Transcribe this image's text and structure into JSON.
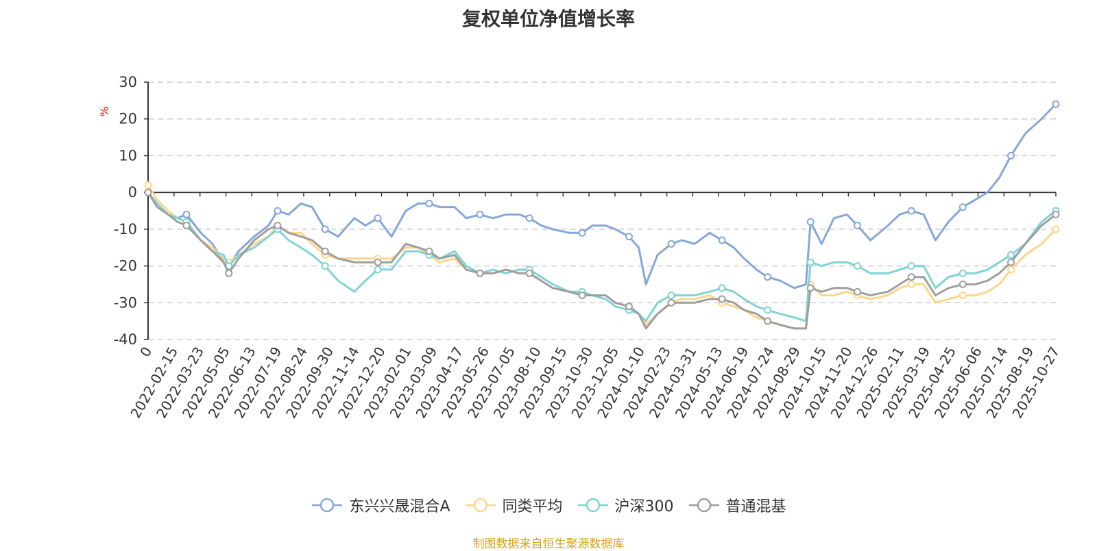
{
  "title": "复权单位净值增长率",
  "source": "制图数据来自恒生聚源数据库",
  "chart_data": {
    "type": "line",
    "title": "复权单位净值增长率",
    "ylabel": "%",
    "ylim": [
      -40,
      30
    ],
    "yticks": [
      30,
      20,
      10,
      0,
      -10,
      -20,
      -30,
      -40
    ],
    "grid": true,
    "legend_position": "bottom",
    "x_tick_labels": [
      "0",
      "2022-02-15",
      "2022-03-23",
      "2022-05-05",
      "2022-06-13",
      "2022-07-19",
      "2022-08-24",
      "2022-09-30",
      "2022-11-14",
      "2022-12-20",
      "2023-02-01",
      "2023-03-09",
      "2023-04-17",
      "2023-05-26",
      "2023-07-05",
      "2023-08-10",
      "2023-09-15",
      "2023-10-30",
      "2023-12-05",
      "2024-01-10",
      "2024-02-23",
      "2024-03-31",
      "2024-05-13",
      "2024-06-19",
      "2024-07-24",
      "2024-08-29",
      "2024-10-15",
      "2024-11-20",
      "2024-12-26",
      "2025-02-11",
      "2025-03-19",
      "2025-04-25",
      "2025-06-06",
      "2025-07-14",
      "2025-08-19",
      "2025-10-27"
    ],
    "x": [
      "2022-01-01",
      "2022-01-15",
      "2022-02-01",
      "2022-02-15",
      "2022-03-01",
      "2022-03-23",
      "2022-04-10",
      "2022-04-27",
      "2022-05-05",
      "2022-05-20",
      "2022-06-13",
      "2022-07-05",
      "2022-07-19",
      "2022-08-05",
      "2022-08-24",
      "2022-09-10",
      "2022-09-30",
      "2022-10-20",
      "2022-11-14",
      "2022-12-01",
      "2022-12-20",
      "2023-01-10",
      "2023-02-01",
      "2023-02-20",
      "2023-03-09",
      "2023-03-25",
      "2023-04-17",
      "2023-05-05",
      "2023-05-26",
      "2023-06-15",
      "2023-07-05",
      "2023-07-25",
      "2023-08-10",
      "2023-08-28",
      "2023-09-15",
      "2023-10-10",
      "2023-10-30",
      "2023-11-15",
      "2023-12-05",
      "2023-12-20",
      "2024-01-10",
      "2024-01-25",
      "2024-02-05",
      "2024-02-23",
      "2024-03-15",
      "2024-03-31",
      "2024-04-20",
      "2024-05-13",
      "2024-06-01",
      "2024-06-19",
      "2024-07-05",
      "2024-07-24",
      "2024-08-10",
      "2024-08-29",
      "2024-09-20",
      "2024-10-08",
      "2024-10-15",
      "2024-11-01",
      "2024-11-20",
      "2024-12-10",
      "2024-12-26",
      "2025-01-15",
      "2025-02-11",
      "2025-03-01",
      "2025-03-19",
      "2025-04-07",
      "2025-04-25",
      "2025-05-15",
      "2025-06-06",
      "2025-06-25",
      "2025-07-14",
      "2025-08-01",
      "2025-08-19",
      "2025-09-10",
      "2025-10-05",
      "2025-10-27"
    ],
    "series": [
      {
        "name": "东兴兴晟混合A",
        "color": "#86a6d9",
        "values": [
          0,
          -3,
          -6,
          -7,
          -6,
          -11,
          -14,
          -19,
          -20,
          -16,
          -12,
          -9,
          -5,
          -6,
          -3,
          -4,
          -10,
          -12,
          -7,
          -9,
          -7,
          -12,
          -5,
          -3,
          -3,
          -4,
          -4,
          -7,
          -6,
          -7,
          -6,
          -6,
          -7,
          -9,
          -10,
          -11,
          -11,
          -9,
          -9,
          -10,
          -12,
          -15,
          -25,
          -17,
          -14,
          -13,
          -14,
          -11,
          -13,
          -15,
          -18,
          -21,
          -23,
          -24,
          -26,
          -25,
          -8,
          -14,
          -7,
          -6,
          -9,
          -13,
          -9,
          -6,
          -5,
          -6,
          -13,
          -8,
          -4,
          -2,
          0,
          4,
          10,
          16,
          20,
          24
        ]
      },
      {
        "name": "同类平均",
        "color": "#ffd58a",
        "values": [
          2,
          -2,
          -5,
          -7,
          -8,
          -13,
          -15,
          -18,
          -19,
          -17,
          -14,
          -12,
          -9,
          -11,
          -11,
          -14,
          -17,
          -18,
          -18,
          -18,
          -18,
          -18,
          -15,
          -15,
          -17,
          -19,
          -18,
          -21,
          -22,
          -22,
          -21,
          -22,
          -22,
          -24,
          -26,
          -27,
          -28,
          -28,
          -28,
          -30,
          -31,
          -33,
          -36,
          -33,
          -30,
          -29,
          -29,
          -28,
          -30,
          -31,
          -32,
          -34,
          -35,
          -36,
          -37,
          -37,
          -25,
          -28,
          -28,
          -27,
          -28,
          -29,
          -28,
          -26,
          -25,
          -25,
          -30,
          -29,
          -28,
          -28,
          -27,
          -25,
          -21,
          -17,
          -14,
          -10
        ]
      },
      {
        "name": "沪深300",
        "color": "#7fd3d4",
        "values": [
          0,
          -3,
          -6,
          -7,
          -8,
          -13,
          -16,
          -17,
          -20,
          -17,
          -15,
          -12,
          -10,
          -13,
          -15,
          -17,
          -20,
          -24,
          -27,
          -24,
          -21,
          -21,
          -16,
          -16,
          -17,
          -18,
          -16,
          -20,
          -22,
          -21,
          -22,
          -21,
          -21,
          -23,
          -25,
          -27,
          -27,
          -28,
          -29,
          -31,
          -32,
          -33,
          -35,
          -30,
          -28,
          -28,
          -28,
          -27,
          -26,
          -27,
          -29,
          -31,
          -32,
          -33,
          -34,
          -35,
          -19,
          -20,
          -19,
          -19,
          -20,
          -22,
          -22,
          -21,
          -20,
          -20,
          -26,
          -23,
          -22,
          -22,
          -21,
          -19,
          -17,
          -14,
          -8,
          -5
        ]
      },
      {
        "name": "普通混基",
        "color": "#9e9e9e",
        "values": [
          0,
          -4,
          -6,
          -8,
          -9,
          -13,
          -16,
          -19,
          -22,
          -18,
          -13,
          -10,
          -9,
          -11,
          -12,
          -13,
          -16,
          -18,
          -19,
          -19,
          -19,
          -19,
          -14,
          -15,
          -16,
          -18,
          -17,
          -21,
          -22,
          -22,
          -21,
          -22,
          -22,
          -24,
          -26,
          -27,
          -28,
          -28,
          -28,
          -30,
          -31,
          -33,
          -37,
          -33,
          -30,
          -30,
          -30,
          -29,
          -29,
          -30,
          -32,
          -33,
          -35,
          -36,
          -37,
          -37,
          -26,
          -27,
          -26,
          -26,
          -27,
          -28,
          -27,
          -25,
          -23,
          -23,
          -28,
          -26,
          -25,
          -25,
          -24,
          -22,
          -19,
          -14,
          -9,
          -6
        ]
      }
    ]
  }
}
